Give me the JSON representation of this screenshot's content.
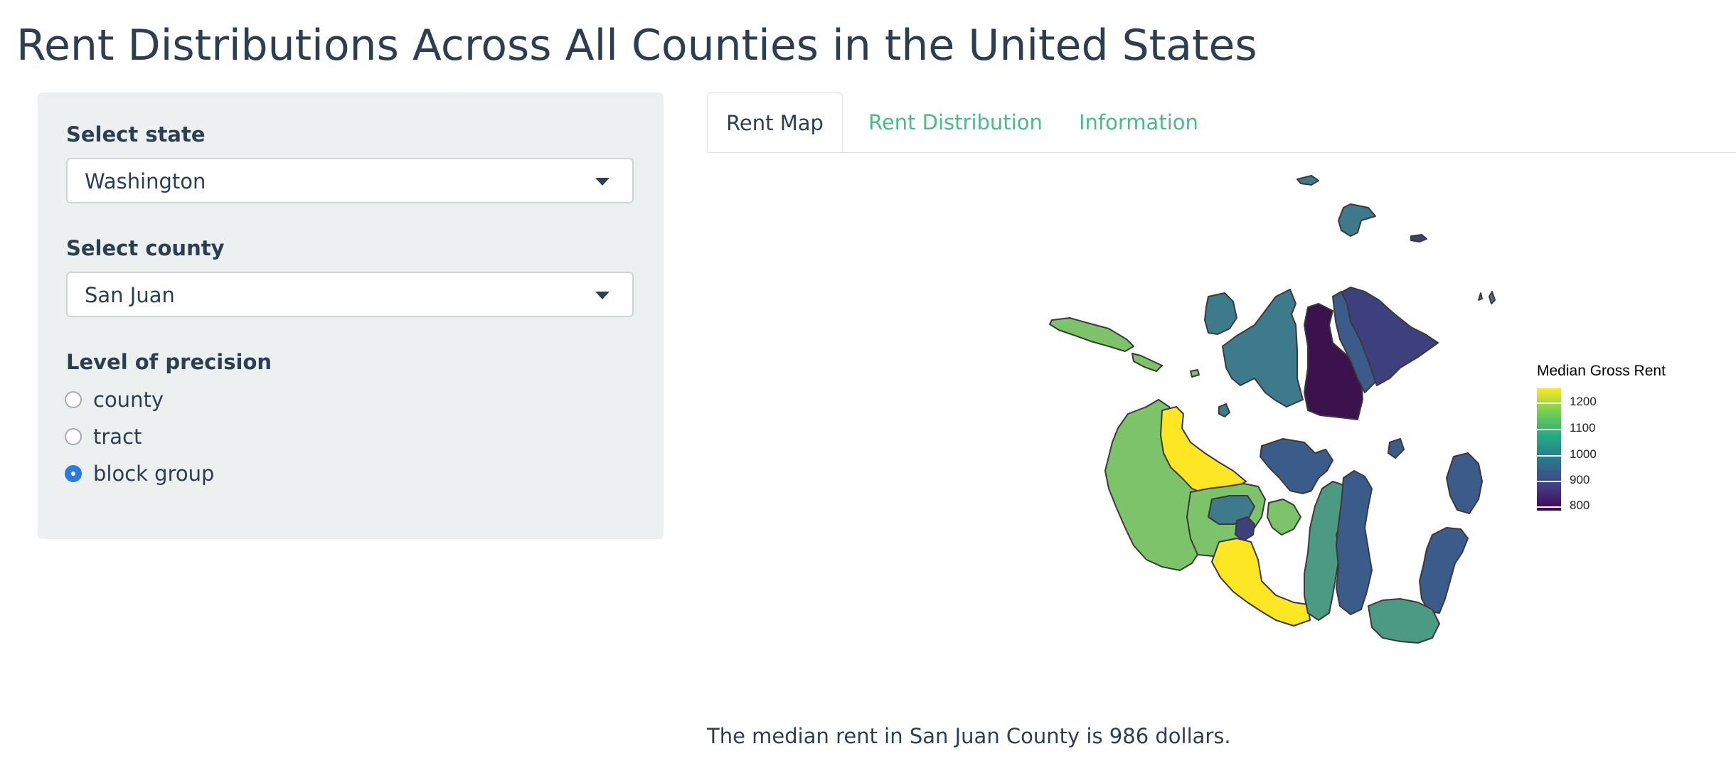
{
  "page": {
    "title": "Rent Distributions Across All Counties in the United States"
  },
  "sidebar": {
    "state": {
      "label": "Select state",
      "value": "Washington"
    },
    "county": {
      "label": "Select county",
      "value": "San Juan"
    },
    "precision": {
      "label": "Level of precision",
      "options": [
        {
          "label": "county",
          "checked": false
        },
        {
          "label": "tract",
          "checked": false
        },
        {
          "label": "block group",
          "checked": true
        }
      ]
    }
  },
  "tabs": [
    {
      "label": "Rent Map",
      "active": true
    },
    {
      "label": "Rent Distribution",
      "active": false
    },
    {
      "label": "Information",
      "active": false
    }
  ],
  "map": {
    "legend": {
      "title": "Median Gross Rent",
      "ticks": [
        "1200",
        "1100",
        "1000",
        "900",
        "800"
      ]
    },
    "colors": {
      "yellow": "#fde725",
      "light_green": "#7cc36a",
      "teal_green": "#4c9a83",
      "teal": "#3d7a8c",
      "blue_slate": "#3b5b8a",
      "purple_blue": "#3e3f7d",
      "dark_purple": "#3b124e",
      "outline": "#3a3a3a"
    }
  },
  "summary": {
    "text": "The median rent in San Juan County is 986 dollars."
  }
}
